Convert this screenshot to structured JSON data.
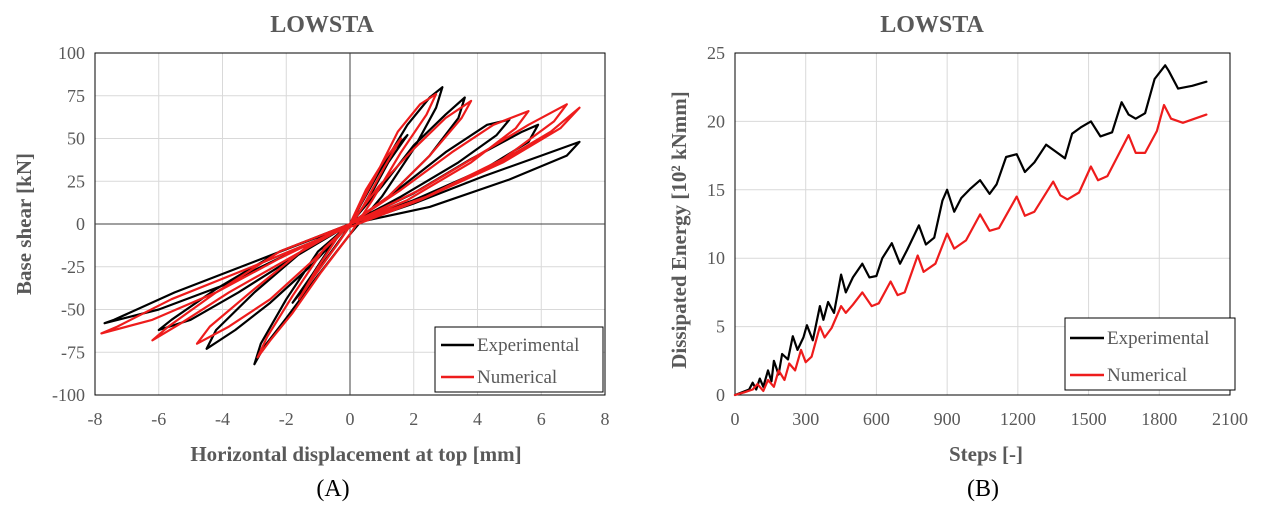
{
  "colors": {
    "experimental": "#000000",
    "numerical": "#ee1c1c",
    "text": "#595959",
    "grid": "#d9d9d9"
  },
  "panels": [
    {
      "label": "(A)"
    },
    {
      "label": "(B)"
    }
  ],
  "chart_data": [
    {
      "type": "line",
      "title": "LOWSTA",
      "xlabel": "Horizontal displacement at top [mm]",
      "ylabel": "Base shear [kN]",
      "xlim": [
        -8,
        8
      ],
      "ylim": [
        -100,
        100
      ],
      "xticks": [
        -8,
        -6,
        -4,
        -2,
        0,
        2,
        4,
        6,
        8
      ],
      "yticks": [
        -100,
        -75,
        -50,
        -25,
        0,
        25,
        50,
        75,
        100
      ],
      "grid": true,
      "legend": "bottom-right",
      "series": [
        {
          "name": "Experimental",
          "x": [
            0,
            0.6,
            1.2,
            1.8,
            1.2,
            0.5,
            -0.5,
            -1.2,
            -1.8,
            -1.2,
            -0.5,
            0,
            0.9,
            1.8,
            2.5,
            2.9,
            2.7,
            2.0,
            1.0,
            0,
            -1.0,
            -2.0,
            -2.7,
            -3.0,
            -2.8,
            -2.0,
            -1.0,
            0,
            1.0,
            2.0,
            3.0,
            3.6,
            3.4,
            2.5,
            1.2,
            0,
            -1.2,
            -2.5,
            -3.6,
            -4.5,
            -4.2,
            -3.0,
            -1.5,
            0,
            1.5,
            3.0,
            4.3,
            5.0,
            4.6,
            3.4,
            1.6,
            0,
            -1.8,
            -3.5,
            -5.0,
            -6.0,
            -5.6,
            -4.2,
            -2.2,
            0,
            2.0,
            3.8,
            5.4,
            5.9,
            5.6,
            4.2,
            2.0,
            0,
            -2.0,
            -4.0,
            -6.0,
            -7.7,
            -7.4,
            -5.5,
            -3.0,
            -0.5,
            2.0,
            4.2,
            6.0,
            7.2,
            6.8,
            5.0,
            2.5,
            0
          ],
          "y": [
            0,
            22,
            40,
            52,
            36,
            12,
            -14,
            -32,
            -46,
            -30,
            -10,
            0,
            30,
            58,
            74,
            80,
            68,
            44,
            16,
            -6,
            -30,
            -55,
            -72,
            -82,
            -70,
            -44,
            -16,
            0,
            22,
            46,
            64,
            74,
            62,
            40,
            16,
            0,
            -24,
            -46,
            -62,
            -73,
            -62,
            -40,
            -16,
            0,
            20,
            42,
            58,
            61,
            52,
            36,
            16,
            0,
            -20,
            -40,
            -56,
            -62,
            -56,
            -38,
            -16,
            0,
            18,
            38,
            54,
            58,
            48,
            32,
            14,
            0,
            -18,
            -36,
            -50,
            -58,
            -56,
            -40,
            -22,
            -4,
            12,
            28,
            40,
            48,
            40,
            26,
            10,
            0
          ]
        },
        {
          "name": "Numerical",
          "x": [
            0,
            0.5,
            1.1,
            1.6,
            1.1,
            0.4,
            -0.4,
            -1.1,
            -1.6,
            -1.1,
            -0.4,
            0,
            0.8,
            1.5,
            2.2,
            2.7,
            2.4,
            1.6,
            0.7,
            0,
            -0.9,
            -1.8,
            -2.5,
            -2.9,
            -2.6,
            -1.8,
            -0.8,
            0,
            0.9,
            2.0,
            3.0,
            3.8,
            3.5,
            2.5,
            1.2,
            0,
            -1.2,
            -2.5,
            -3.8,
            -4.8,
            -4.4,
            -3.0,
            -1.4,
            0,
            1.6,
            3.2,
            4.5,
            5.6,
            5.2,
            3.8,
            1.8,
            0,
            -1.9,
            -3.8,
            -5.3,
            -6.2,
            -5.7,
            -4.2,
            -2.2,
            0,
            2.2,
            4.0,
            5.6,
            6.8,
            6.4,
            4.8,
            2.4,
            0,
            -2.2,
            -4.2,
            -6.2,
            -7.8,
            -7.3,
            -5.6,
            -3.2,
            -0.6,
            2.2,
            4.5,
            6.3,
            7.2,
            6.6,
            4.8,
            2.2,
            0
          ],
          "y": [
            0,
            20,
            38,
            50,
            34,
            10,
            -12,
            -30,
            -44,
            -28,
            -8,
            0,
            28,
            54,
            70,
            76,
            64,
            42,
            14,
            -6,
            -28,
            -52,
            -68,
            -78,
            -66,
            -42,
            -14,
            0,
            22,
            44,
            62,
            72,
            62,
            40,
            16,
            0,
            -22,
            -44,
            -60,
            -70,
            -60,
            -38,
            -14,
            0,
            20,
            42,
            58,
            66,
            56,
            36,
            14,
            0,
            -20,
            -40,
            -58,
            -68,
            -60,
            -40,
            -16,
            0,
            20,
            40,
            58,
            70,
            60,
            38,
            16,
            0,
            -20,
            -40,
            -56,
            -64,
            -60,
            -44,
            -26,
            -6,
            14,
            34,
            54,
            68,
            56,
            36,
            14,
            0
          ]
        }
      ]
    },
    {
      "type": "line",
      "title": "LOWSTA",
      "xlabel": "Steps [-]",
      "ylabel": "Dissipated Energy [10² kNmm]",
      "xlim": [
        0,
        2100
      ],
      "ylim": [
        0,
        25
      ],
      "xticks": [
        0,
        300,
        600,
        900,
        1200,
        1500,
        1800,
        2100
      ],
      "yticks": [
        0,
        5,
        10,
        15,
        20,
        25
      ],
      "grid": true,
      "legend": "bottom-right",
      "series": [
        {
          "name": "Experimental",
          "x": [
            0,
            30,
            60,
            75,
            90,
            105,
            120,
            140,
            155,
            165,
            185,
            200,
            225,
            245,
            265,
            290,
            305,
            330,
            360,
            375,
            395,
            420,
            450,
            470,
            500,
            540,
            570,
            600,
            625,
            665,
            700,
            730,
            780,
            810,
            845,
            880,
            900,
            930,
            960,
            1000,
            1040,
            1080,
            1110,
            1150,
            1195,
            1230,
            1270,
            1320,
            1360,
            1400,
            1430,
            1470,
            1510,
            1550,
            1600,
            1640,
            1670,
            1700,
            1740,
            1780,
            1825,
            1840,
            1880,
            1940,
            2000
          ],
          "y": [
            0,
            0.2,
            0.4,
            0.9,
            0.4,
            1.2,
            0.6,
            1.8,
            1.0,
            2.5,
            1.5,
            3.0,
            2.6,
            4.3,
            3.3,
            4.2,
            5.1,
            4.0,
            6.5,
            5.5,
            6.8,
            6.0,
            8.8,
            7.5,
            8.6,
            9.6,
            8.6,
            8.7,
            10.0,
            11.1,
            9.6,
            10.6,
            12.4,
            11.0,
            11.5,
            14.2,
            15.0,
            13.4,
            14.4,
            15.1,
            15.7,
            14.7,
            15.4,
            17.4,
            17.6,
            16.3,
            17.0,
            18.3,
            17.8,
            17.3,
            19.1,
            19.6,
            20.0,
            18.9,
            19.2,
            21.4,
            20.5,
            20.2,
            20.6,
            23.1,
            24.1,
            23.7,
            22.4,
            22.6,
            22.9
          ]
        },
        {
          "name": "Numerical",
          "x": [
            0,
            40,
            75,
            95,
            120,
            140,
            165,
            185,
            210,
            230,
            255,
            280,
            300,
            325,
            360,
            380,
            410,
            450,
            470,
            500,
            540,
            580,
            610,
            660,
            690,
            720,
            775,
            800,
            850,
            900,
            930,
            980,
            1040,
            1080,
            1120,
            1195,
            1230,
            1270,
            1350,
            1380,
            1410,
            1460,
            1510,
            1540,
            1580,
            1670,
            1700,
            1740,
            1790,
            1820,
            1850,
            1900,
            1950,
            2000
          ],
          "y": [
            0,
            0.2,
            0.4,
            0.8,
            0.3,
            1.1,
            0.6,
            1.8,
            1.1,
            2.3,
            1.8,
            3.3,
            2.4,
            2.8,
            5.0,
            4.2,
            4.9,
            6.5,
            6.0,
            6.6,
            7.5,
            6.5,
            6.7,
            8.3,
            7.3,
            7.5,
            10.2,
            9.0,
            9.6,
            11.8,
            10.7,
            11.3,
            13.2,
            12.0,
            12.2,
            14.5,
            13.1,
            13.4,
            15.6,
            14.6,
            14.3,
            14.8,
            16.7,
            15.7,
            16.0,
            19.0,
            17.7,
            17.7,
            19.3,
            21.2,
            20.2,
            19.9,
            20.2,
            20.5
          ]
        }
      ]
    }
  ]
}
